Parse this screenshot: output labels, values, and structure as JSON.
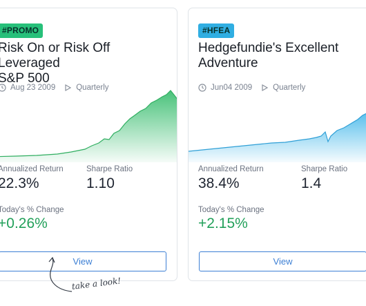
{
  "cards": [
    {
      "badge": "#PROMO",
      "badge_color": "#27c07a",
      "title": "Risk On or Risk Off Leveraged\nS&P 500",
      "date": "Aug 23 2009",
      "frequency": "Quarterly",
      "chart_color": "#3fbf73",
      "stats": {
        "annualized_label": "Annualized Return",
        "annualized_value": "22.3%",
        "sharpe_label": "Sharpe Ratio",
        "sharpe_value": "1.10",
        "change_label": "Today's % Change",
        "change_value": "+0.26%"
      },
      "button": "View"
    },
    {
      "badge": "#HFEA",
      "badge_color": "#30aee2",
      "title": "Hedgefundie's Excellent\nAdventure",
      "date": "Jun04 2009",
      "frequency": "Quarterly",
      "chart_color": "#49b9ea",
      "stats": {
        "annualized_label": "Annualized Return",
        "annualized_value": "38.4%",
        "sharpe_label": "Sharpe Ratio",
        "sharpe_value": "1.4",
        "change_label": "Today's % Change",
        "change_value": "+2.15%"
      },
      "button": "View"
    }
  ],
  "annotation": "take a look!",
  "icons": {
    "date": "clock-icon",
    "frequency": "play-triangle-icon"
  }
}
